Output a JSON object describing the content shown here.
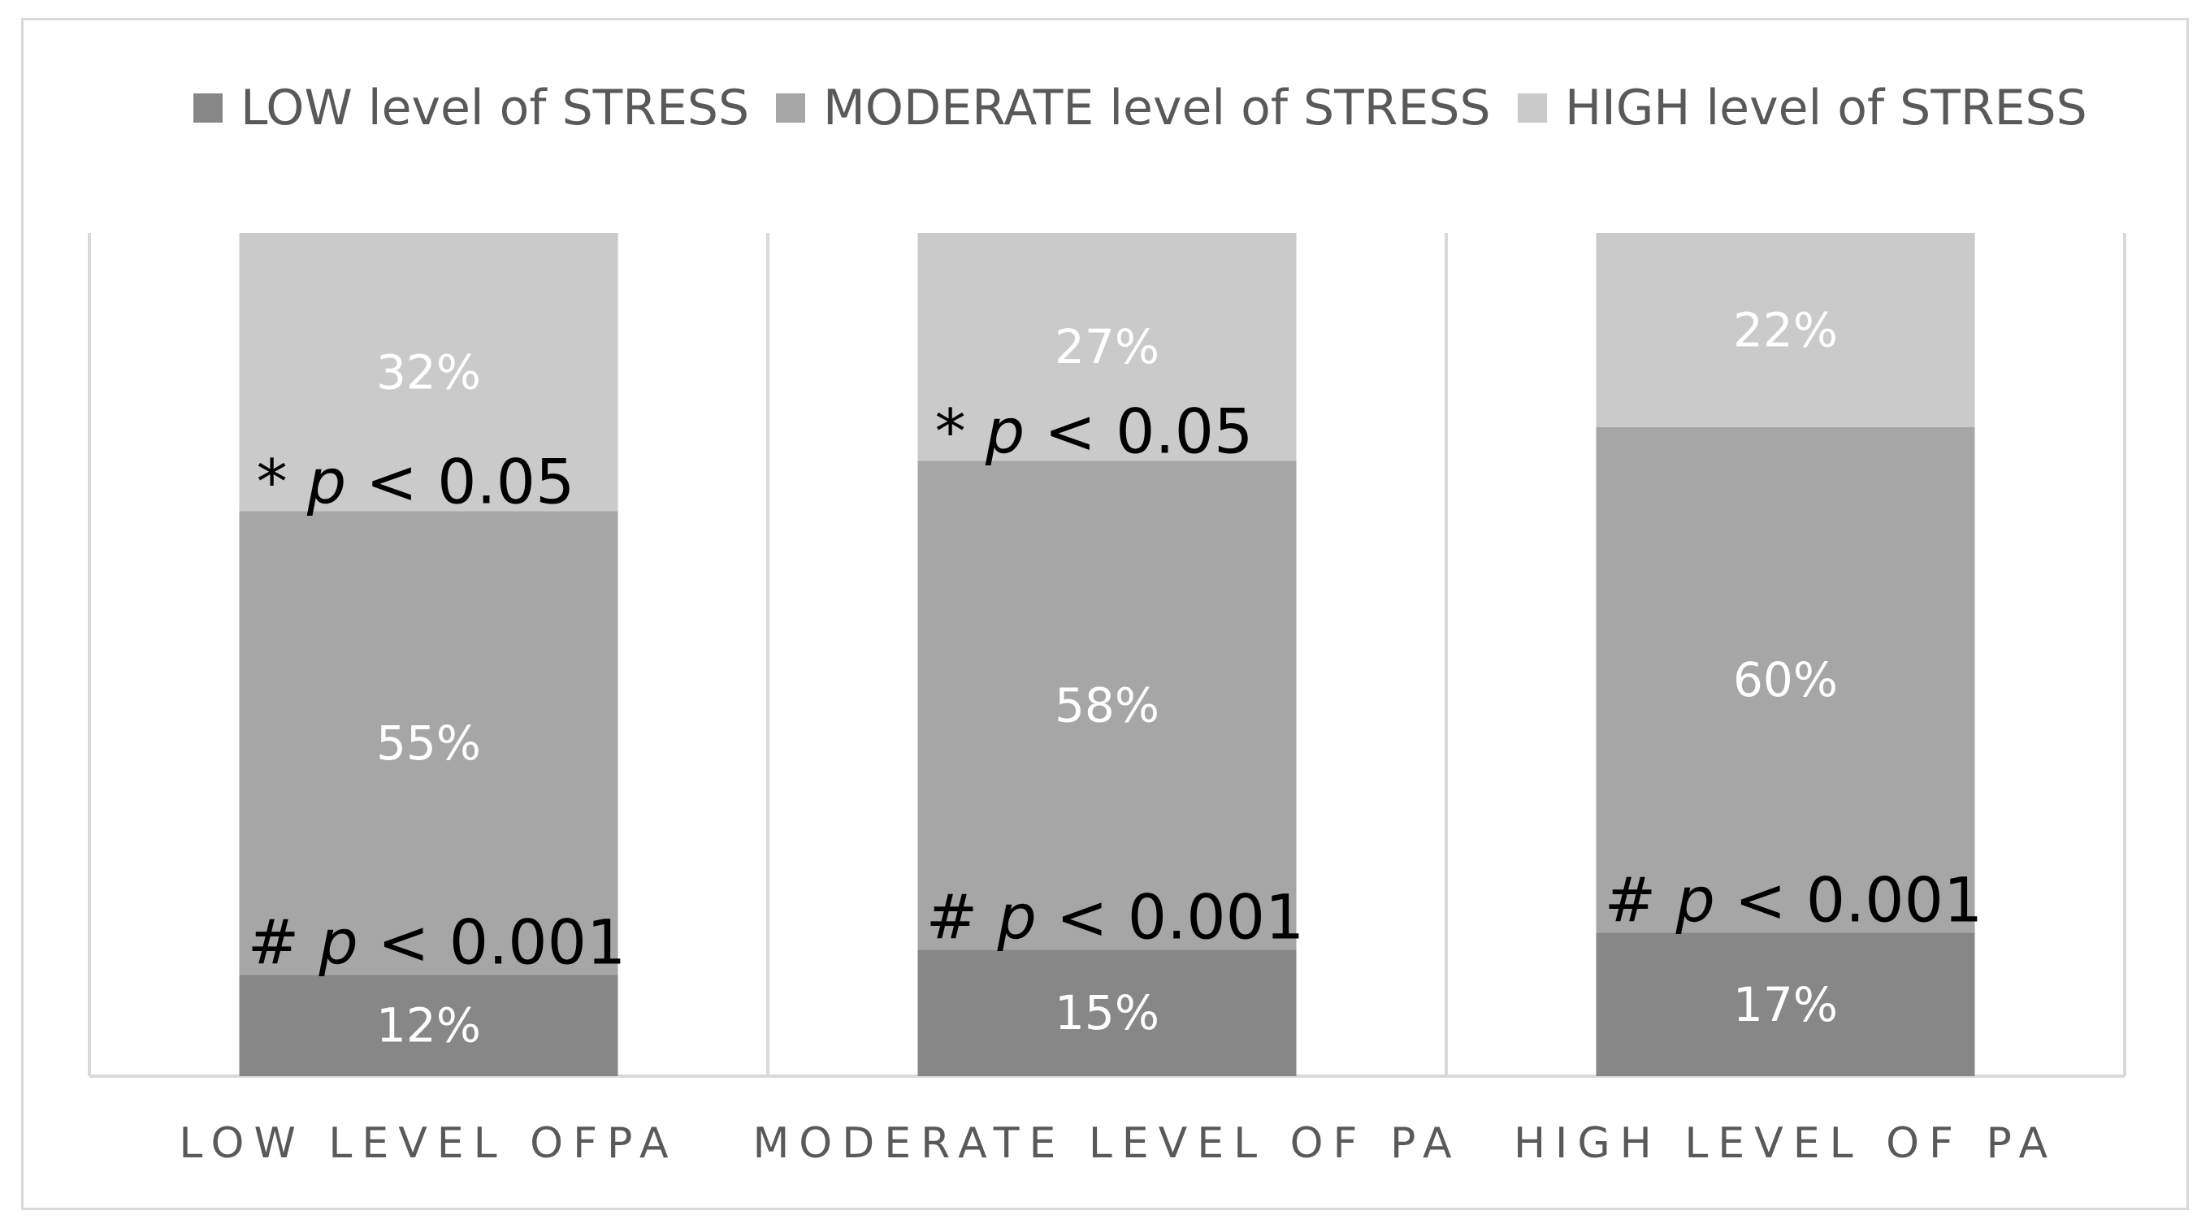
{
  "chart_data": {
    "type": "bar",
    "stacked": true,
    "normalized": true,
    "title": "",
    "xlabel": "",
    "ylabel": "",
    "ylim": [
      0,
      100
    ],
    "grid": false,
    "legend_position": "top",
    "categories": [
      "LOW LEVEL OFPA",
      "MODERATE LEVEL OF PA",
      "HIGH LEVEL OF PA"
    ],
    "series": [
      {
        "name": "LOW level of STRESS",
        "color": "#878787",
        "values": [
          12,
          15,
          17
        ],
        "labels": [
          "12%",
          "15%",
          "17%"
        ]
      },
      {
        "name": "MODERATE level of STRESS",
        "color": "#a6a6a6",
        "values": [
          55,
          58,
          60
        ],
        "labels": [
          "55%",
          "58%",
          "60%"
        ]
      },
      {
        "name": "HIGH level of STRESS",
        "color": "#cacaca",
        "values": [
          32,
          27,
          22
        ],
        "labels": [
          "32%",
          "27%",
          "22%"
        ]
      }
    ],
    "annotations": {
      "hash": [
        {
          "symbol": "# ",
          "p": "p",
          "rest": " < 0.001"
        },
        {
          "symbol": "# ",
          "p": "p",
          "rest": " < 0.001"
        },
        {
          "symbol": "# ",
          "p": "p",
          "rest": " < 0.001"
        }
      ],
      "star": [
        {
          "symbol": "* ",
          "p": "p",
          "rest": " < 0.05"
        },
        {
          "symbol": "* ",
          "p": "p",
          "rest": " < 0.05"
        }
      ]
    }
  }
}
